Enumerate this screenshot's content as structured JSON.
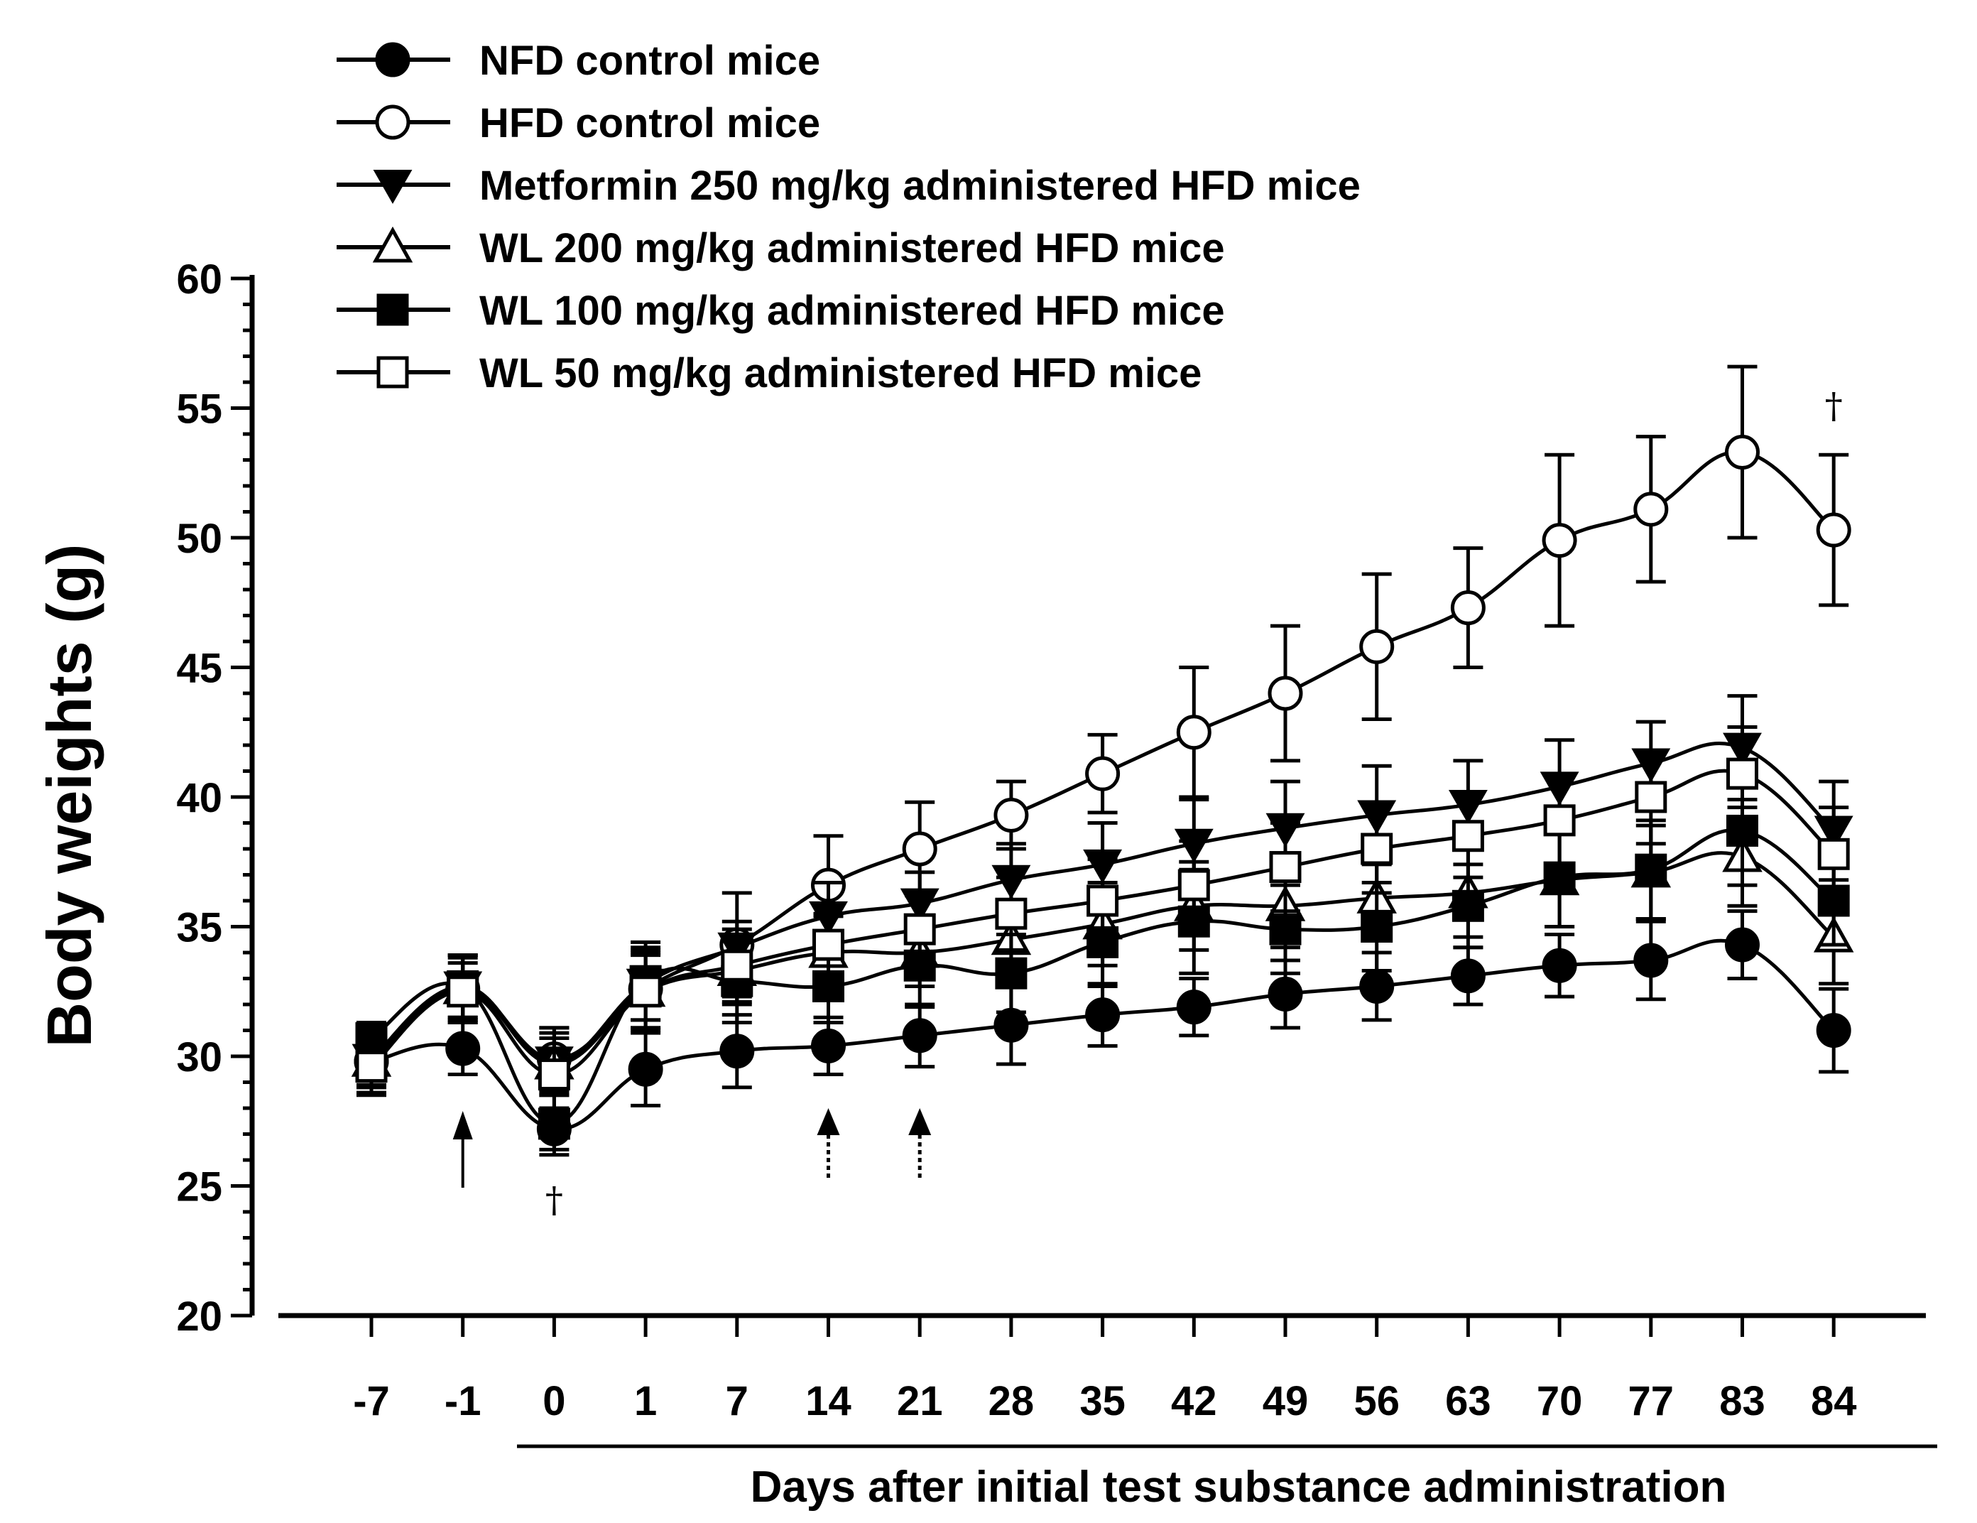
{
  "chart_data": {
    "type": "line",
    "title": "",
    "xlabel": "Days after initial test substance administration",
    "ylabel": "Body weights (g)",
    "ylim": [
      20,
      60
    ],
    "yticks": [
      20,
      25,
      30,
      35,
      40,
      45,
      50,
      55,
      60
    ],
    "ytick_labels": [
      "20",
      "25",
      "30",
      "35",
      "40",
      "45",
      "50",
      "55",
      "60"
    ],
    "categories": [
      "-7",
      "-1",
      "0",
      "1",
      "7",
      "14",
      "21",
      "28",
      "35",
      "42",
      "49",
      "56",
      "63",
      "70",
      "77",
      "83",
      "84"
    ],
    "grid": false,
    "legend_position": "top-left",
    "series": [
      {
        "name": "NFD control mice",
        "marker": "circle-filled",
        "values": [
          29.8,
          30.3,
          27.2,
          29.5,
          30.2,
          30.4,
          30.8,
          31.2,
          31.6,
          31.9,
          32.4,
          32.7,
          33.1,
          33.5,
          33.7,
          34.3,
          31.0
        ],
        "errors": [
          1.2,
          1.0,
          0.8,
          1.4,
          1.4,
          1.1,
          1.2,
          1.5,
          1.2,
          1.1,
          1.3,
          1.3,
          1.1,
          1.2,
          1.5,
          1.3,
          1.6
        ]
      },
      {
        "name": "HFD control mice",
        "marker": "circle-open",
        "values": [
          29.8,
          32.6,
          29.9,
          32.6,
          34.3,
          36.6,
          38.0,
          39.3,
          40.9,
          42.5,
          44.0,
          45.8,
          47.3,
          49.9,
          51.1,
          53.3,
          50.3
        ],
        "errors": [
          1.0,
          1.3,
          1.2,
          1.5,
          2.0,
          1.9,
          1.8,
          1.3,
          1.5,
          2.5,
          2.6,
          2.8,
          2.3,
          3.3,
          2.8,
          3.3,
          2.9
        ]
      },
      {
        "name": "Metformin 250 mg/kg administered HFD mice",
        "marker": "triangle-down-filled",
        "values": [
          29.9,
          32.7,
          29.8,
          32.8,
          34.2,
          35.4,
          35.9,
          36.8,
          37.4,
          38.2,
          38.8,
          39.3,
          39.7,
          40.4,
          41.3,
          41.9,
          38.7
        ],
        "errors": [
          1.0,
          1.2,
          1.3,
          1.4,
          1.0,
          1.3,
          1.2,
          1.4,
          1.6,
          1.7,
          1.8,
          1.9,
          1.7,
          1.8,
          1.6,
          2.0,
          1.9
        ]
      },
      {
        "name": "WL 200 mg/kg administered HFD mice",
        "marker": "triangle-up-open",
        "values": [
          29.8,
          32.6,
          29.7,
          32.5,
          33.3,
          34.0,
          34.0,
          34.5,
          35.1,
          35.8,
          35.8,
          36.1,
          36.3,
          36.8,
          37.1,
          37.7,
          34.6
        ],
        "errors": [
          1.0,
          1.2,
          1.2,
          1.4,
          1.3,
          1.4,
          1.3,
          1.5,
          1.6,
          1.7,
          1.6,
          1.6,
          1.7,
          1.8,
          1.8,
          1.9,
          1.8
        ]
      },
      {
        "name": "WL 100 mg/kg administered HFD mice",
        "marker": "square-filled",
        "values": [
          30.7,
          32.7,
          27.4,
          32.9,
          32.9,
          32.7,
          33.5,
          33.2,
          34.4,
          35.2,
          34.9,
          35.0,
          35.8,
          36.9,
          37.2,
          38.7,
          36.0
        ],
        "errors": [
          0.6,
          1.2,
          1.2,
          1.5,
          1.6,
          1.4,
          1.6,
          1.5,
          1.7,
          2.0,
          1.7,
          1.7,
          1.6,
          1.9,
          1.9,
          2.1,
          1.7
        ]
      },
      {
        "name": "WL 50 mg/kg administered HFD mice",
        "marker": "square-open",
        "values": [
          29.6,
          32.5,
          29.3,
          32.5,
          33.5,
          34.3,
          34.9,
          35.5,
          36.0,
          36.6,
          37.3,
          38.0,
          38.5,
          39.1,
          40.0,
          40.9,
          37.8
        ],
        "errors": [
          1.1,
          1.1,
          1.4,
          1.5,
          1.4,
          1.2,
          1.5,
          1.4,
          1.6,
          1.7,
          1.7,
          1.7,
          1.6,
          1.7,
          1.8,
          1.8,
          1.8
        ]
      }
    ],
    "annotations": [
      {
        "type": "arrow-solid",
        "at": "-1",
        "label": ""
      },
      {
        "type": "arrow-dotted",
        "at": "14",
        "label": ""
      },
      {
        "type": "arrow-dotted",
        "at": "21",
        "label": ""
      },
      {
        "type": "text",
        "at": "0",
        "label": "†"
      },
      {
        "type": "text",
        "at": "84",
        "label": "†"
      }
    ]
  }
}
